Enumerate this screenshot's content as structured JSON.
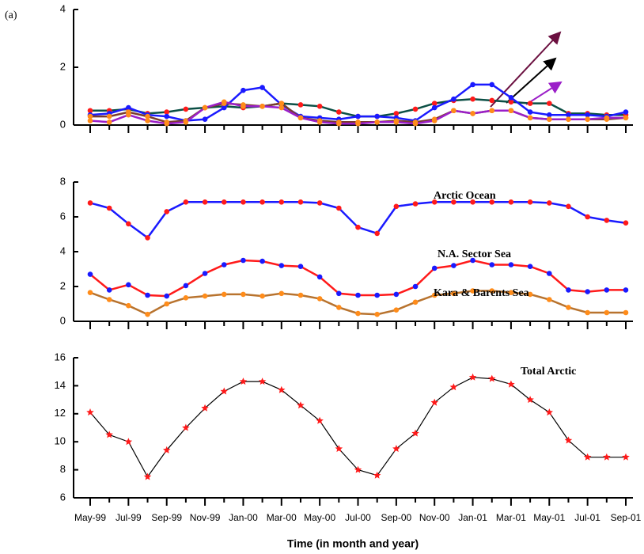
{
  "chart_data": [
    {
      "type": "line",
      "annotation": "(a)",
      "ylim": [
        0,
        4
      ],
      "yticks": [
        0,
        2,
        4
      ],
      "series": [
        {
          "color": "#0b4f45",
          "marker_color": "#ff1a1a",
          "values": [
            0.5,
            0.5,
            0.55,
            0.4,
            0.45,
            0.55,
            0.6,
            0.65,
            0.6,
            0.65,
            0.75,
            0.7,
            0.65,
            0.45,
            0.3,
            0.3,
            0.4,
            0.55,
            0.75,
            0.85,
            0.9,
            0.85,
            0.8,
            0.75,
            0.75,
            0.4,
            0.4,
            0.35,
            0.35
          ]
        },
        {
          "color": "#1a1aff",
          "marker_color": "#1a1aff",
          "values": [
            0.35,
            0.4,
            0.6,
            0.35,
            0.3,
            0.15,
            0.2,
            0.6,
            1.2,
            1.3,
            0.7,
            0.3,
            0.25,
            0.2,
            0.3,
            0.3,
            0.25,
            0.15,
            0.6,
            0.9,
            1.4,
            1.4,
            0.95,
            0.45,
            0.35,
            0.35,
            0.35,
            0.3,
            0.45
          ]
        },
        {
          "color": "#7a3b2e",
          "marker_color": "#ff8c1a",
          "values": [
            0.3,
            0.3,
            0.45,
            0.3,
            0.1,
            0.15,
            0.6,
            0.75,
            0.7,
            0.65,
            0.75,
            0.25,
            0.15,
            0.1,
            0.1,
            0.1,
            0.15,
            0.1,
            0.2,
            0.5,
            0.4,
            0.5,
            0.5,
            0.25,
            0.2,
            0.2,
            0.2,
            0.2,
            0.25
          ]
        },
        {
          "color": "#9b1fc8",
          "marker_color": "#ff8c1a",
          "values": [
            0.15,
            0.1,
            0.35,
            0.15,
            0.05,
            0.1,
            0.6,
            0.8,
            0.65,
            0.65,
            0.6,
            0.25,
            0.1,
            0.05,
            0.05,
            0.1,
            0.1,
            0.05,
            0.15,
            0.5,
            0.4,
            0.5,
            0.5,
            0.25,
            0.2,
            0.2,
            0.2,
            0.25,
            0.25
          ]
        }
      ]
    },
    {
      "type": "line",
      "ylim": [
        0,
        8
      ],
      "yticks": [
        0,
        2,
        4,
        6,
        8
      ],
      "series": [
        {
          "name": "Arctic Ocean",
          "color": "#1a1aff",
          "marker_color": "#ff1a1a",
          "values": [
            6.8,
            6.5,
            5.6,
            4.8,
            6.3,
            6.85,
            6.85,
            6.85,
            6.85,
            6.85,
            6.85,
            6.85,
            6.8,
            6.5,
            5.4,
            5.05,
            6.6,
            6.75,
            6.85,
            6.85,
            6.85,
            6.85,
            6.85,
            6.85,
            6.8,
            6.6,
            6.0,
            5.8,
            5.65
          ]
        },
        {
          "name": "N.A. Sector Sea",
          "color": "#ff1a1a",
          "marker_color": "#1a1aff",
          "values": [
            2.7,
            1.8,
            2.1,
            1.5,
            1.45,
            2.05,
            2.75,
            3.25,
            3.5,
            3.45,
            3.2,
            3.15,
            2.55,
            1.6,
            1.5,
            1.5,
            1.55,
            2.0,
            3.05,
            3.2,
            3.5,
            3.25,
            3.25,
            3.15,
            2.75,
            1.8,
            1.7,
            1.8,
            1.8
          ]
        },
        {
          "name": "Kara & Barents Sea",
          "color": "#b8732e",
          "marker_color": "#ff8c1a",
          "values": [
            1.65,
            1.25,
            0.9,
            0.4,
            1.0,
            1.35,
            1.45,
            1.55,
            1.55,
            1.45,
            1.6,
            1.5,
            1.3,
            0.8,
            0.45,
            0.4,
            0.65,
            1.1,
            1.5,
            1.6,
            1.75,
            1.75,
            1.65,
            1.55,
            1.25,
            0.8,
            0.5,
            0.5,
            0.5
          ]
        }
      ]
    },
    {
      "type": "line",
      "ylim": [
        6,
        16
      ],
      "yticks": [
        6,
        8,
        10,
        12,
        14,
        16
      ],
      "x_label": "Time (in month and year)",
      "categories": [
        "May-99",
        null,
        "Jul-99",
        null,
        "Sep-99",
        null,
        "Nov-99",
        null,
        "Jan-00",
        null,
        "Mar-00",
        null,
        "May-00",
        null,
        "Jul-00",
        null,
        "Sep-00",
        null,
        "Nov-00",
        null,
        "Jan-01",
        null,
        "Mar-01",
        null,
        "May-01",
        null,
        "Jul-01",
        null,
        "Sep-01"
      ],
      "series": [
        {
          "name": "Total Arctic",
          "color": "#000000",
          "marker_color": "#ff1a1a",
          "marker": "star",
          "values": [
            12.1,
            10.5,
            10.0,
            7.5,
            9.4,
            11.0,
            12.4,
            13.6,
            14.3,
            14.3,
            13.7,
            12.6,
            11.5,
            9.5,
            8.0,
            7.6,
            9.5,
            10.6,
            12.8,
            13.9,
            14.6,
            14.5,
            14.1,
            13.0,
            12.1,
            10.1,
            8.9,
            8.9,
            8.9
          ]
        }
      ]
    }
  ]
}
